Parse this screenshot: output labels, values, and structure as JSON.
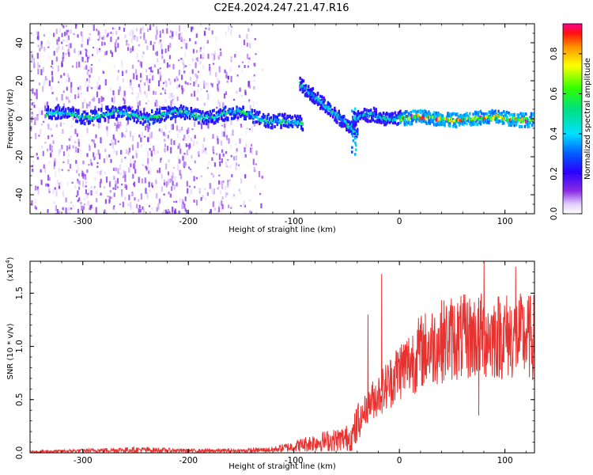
{
  "title": "C2E4.2024.247.21.47.R16",
  "colors": {
    "snr_line": "#e8322f",
    "axis": "#000000"
  },
  "chart_data": [
    {
      "type": "heatmap",
      "xlabel": "Height of straight line (km)",
      "ylabel": "Frequency (Hz)",
      "xlim": [
        -350,
        128
      ],
      "ylim": [
        -50,
        50
      ],
      "xticks": [
        "-300",
        "-200",
        "-100",
        "0",
        "100"
      ],
      "yticks": [
        "40",
        "20",
        "0",
        "-20",
        "-40"
      ],
      "colorbar": {
        "label": "Normalized spectral amplitude",
        "range": [
          0.0,
          0.95
        ],
        "ticks": [
          "0.0",
          "0.2",
          "0.4",
          "0.6",
          "0.8"
        ]
      },
      "features": [
        {
          "name": "broadband noise",
          "x_range": [
            -350,
            -130
          ],
          "f_range": [
            -50,
            50
          ],
          "amplitude": 0.08
        },
        {
          "name": "main carrier",
          "x_range": [
            -335,
            128
          ],
          "f_center": 2,
          "amplitude": 0.55
        },
        {
          "name": "tilted trace",
          "x_start": -95,
          "x_end": -40,
          "f_start": 18,
          "f_end": -8,
          "amplitude": 0.5
        },
        {
          "name": "strong carrier",
          "x_range": [
            0,
            128
          ],
          "f_center": 0,
          "amplitude": 0.9
        }
      ]
    },
    {
      "type": "line",
      "xlabel": "Height of straight line (km)",
      "ylabel": "SNR (10 * v/v)",
      "scale_label": "(x10",
      "scale_exponent": "4",
      "xlim": [
        -350,
        128
      ],
      "ylim": [
        0,
        1.8
      ],
      "xticks": [
        "-300",
        "-200",
        "-100",
        "0",
        "100"
      ],
      "yticks": [
        "0.0",
        "0.5",
        "1.0",
        "1.5"
      ],
      "series": [
        {
          "name": "SNR",
          "x": [
            -350,
            -300,
            -250,
            -200,
            -150,
            -120,
            -100,
            -80,
            -60,
            -45,
            -40,
            -35,
            -30,
            -25,
            -20,
            -15,
            -10,
            0,
            10,
            20,
            30,
            40,
            50,
            60,
            80,
            100,
            128
          ],
          "values": [
            0.01,
            0.02,
            0.03,
            0.02,
            0.02,
            0.03,
            0.06,
            0.1,
            0.12,
            0.15,
            0.25,
            0.35,
            0.45,
            0.5,
            0.55,
            0.6,
            0.65,
            0.78,
            0.85,
            0.95,
            1.0,
            1.05,
            1.08,
            1.08,
            1.1,
            1.1,
            1.08
          ]
        }
      ],
      "spikes": [
        {
          "x": -30,
          "value": 1.3
        },
        {
          "x": -17,
          "value": 1.68
        },
        {
          "x": 80,
          "value": 1.8
        },
        {
          "x": 110,
          "value": 1.75
        },
        {
          "x": 75,
          "value": 0.35
        }
      ]
    }
  ]
}
